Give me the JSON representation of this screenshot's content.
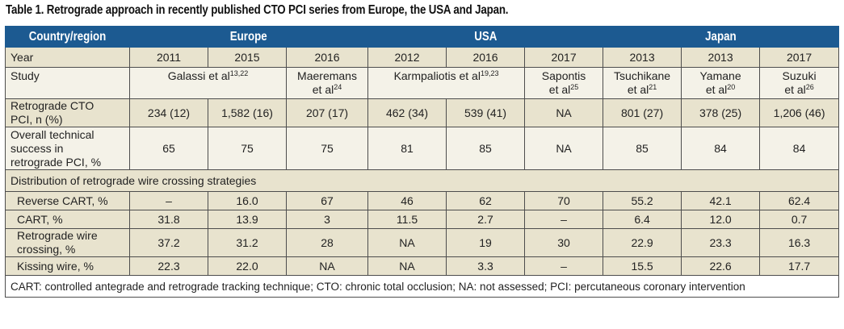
{
  "title": "Table 1. Retrograde approach in recently published CTO PCI series from Europe, the USA and Japan.",
  "header": {
    "first": "Country/region",
    "regions": [
      "Europe",
      "USA",
      "Japan"
    ]
  },
  "rows": {
    "year": {
      "label": "Year",
      "values": [
        "2011",
        "2015",
        "2016",
        "2012",
        "2016",
        "2017",
        "2013",
        "2013",
        "2017"
      ]
    },
    "study": {
      "label": "Study",
      "entries": [
        {
          "name": "Galassi et al",
          "ref": "13,22"
        },
        {
          "name": "Maeremans",
          "name2": "et al",
          "ref": "24"
        },
        {
          "name": "Karmpaliotis et al",
          "ref": "19,23"
        },
        {
          "name": "Sapontis",
          "name2": "et al",
          "ref": "25"
        },
        {
          "name": "Tsuchikane",
          "name2": "et al",
          "ref": "21"
        },
        {
          "name": "Yamane",
          "name2": "et al",
          "ref": "20"
        },
        {
          "name": "Suzuki",
          "name2": "et al",
          "ref": "26"
        }
      ]
    },
    "retrograde": {
      "label1": "Retrograde CTO",
      "label2": "PCI, n (%)",
      "values": [
        "234 (12)",
        "1,582 (16)",
        "207 (17)",
        "462 (34)",
        "539 (41)",
        "NA",
        "801 (27)",
        "378 (25)",
        "1,206 (46)"
      ]
    },
    "overall": {
      "label1": "Overall technical",
      "label2": "success in",
      "label3": "retrograde PCI, %",
      "values": [
        "65",
        "75",
        "75",
        "81",
        "85",
        "NA",
        "85",
        "84",
        "84"
      ]
    },
    "distribution": {
      "label": "Distribution of retrograde wire crossing strategies"
    },
    "reverse_cart": {
      "label": "Reverse CART, %",
      "values": [
        "–",
        "16.0",
        "67",
        "46",
        "62",
        "70",
        "55.2",
        "42.1",
        "62.4"
      ]
    },
    "cart": {
      "label": "CART, %",
      "values": [
        "31.8",
        "13.9",
        "3",
        "11.5",
        "2.7",
        "–",
        "6.4",
        "12.0",
        "0.7"
      ]
    },
    "retro_wire": {
      "label1": "Retrograde wire",
      "label2": "crossing, %",
      "values": [
        "37.2",
        "31.2",
        "28",
        "NA",
        "19",
        "30",
        "22.9",
        "23.3",
        "16.3"
      ]
    },
    "kissing": {
      "label": "Kissing wire, %",
      "values": [
        "22.3",
        "22.0",
        "NA",
        "NA",
        "3.3",
        "–",
        "15.5",
        "22.6",
        "17.7"
      ]
    }
  },
  "footnote": "CART: controlled antegrade and retrograde tracking technique; CTO: chronic total occlusion; NA: not assessed; PCI: percutaneous coronary intervention",
  "colors": {
    "header_bg": "#1c5a91",
    "beige": "#e8e3ce",
    "light": "#f4f2e8"
  }
}
